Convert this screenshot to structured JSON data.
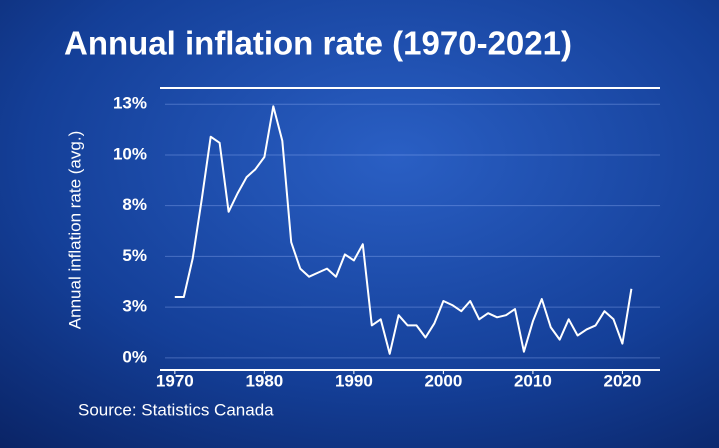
{
  "chart_data": {
    "type": "line",
    "title": "Annual inflation rate (1970-2021)",
    "y_label": "Annual inflation rate (avg.)",
    "source": "Source: Statistics Canada",
    "x": [
      1970,
      1971,
      1972,
      1973,
      1974,
      1975,
      1976,
      1977,
      1978,
      1979,
      1980,
      1981,
      1982,
      1983,
      1984,
      1985,
      1986,
      1987,
      1988,
      1989,
      1990,
      1991,
      1992,
      1993,
      1994,
      1995,
      1996,
      1997,
      1998,
      1999,
      2000,
      2001,
      2002,
      2003,
      2004,
      2005,
      2006,
      2007,
      2008,
      2009,
      2010,
      2011,
      2012,
      2013,
      2014,
      2015,
      2016,
      2017,
      2018,
      2019,
      2020,
      2021
    ],
    "values": [
      3.0,
      3.0,
      4.9,
      7.8,
      10.9,
      10.6,
      7.2,
      8.1,
      8.9,
      9.3,
      9.9,
      12.4,
      10.7,
      5.7,
      4.4,
      4.0,
      4.2,
      4.4,
      4.0,
      5.1,
      4.8,
      5.6,
      1.6,
      1.9,
      0.2,
      2.1,
      1.6,
      1.6,
      1.0,
      1.7,
      2.8,
      2.6,
      2.3,
      2.8,
      1.9,
      2.2,
      2.0,
      2.1,
      2.4,
      0.3,
      1.8,
      2.9,
      1.5,
      0.9,
      1.9,
      1.1,
      1.4,
      1.6,
      2.3,
      1.9,
      0.7,
      3.4
    ],
    "color": "#ffffff",
    "xlim": [
      1968.9,
      2024.2
    ],
    "xticks": [
      1970,
      1980,
      1990,
      2000,
      2010,
      2020
    ],
    "ylim": [
      -0.6,
      13.3
    ],
    "yticks": [
      {
        "value": 0,
        "label": "0%"
      },
      {
        "value": 2.5,
        "label": "3%"
      },
      {
        "value": 5,
        "label": "5%"
      },
      {
        "value": 7.5,
        "label": "8%"
      },
      {
        "value": 10,
        "label": "10%"
      },
      {
        "value": 12.5,
        "label": "13%"
      }
    ],
    "grid": true
  }
}
